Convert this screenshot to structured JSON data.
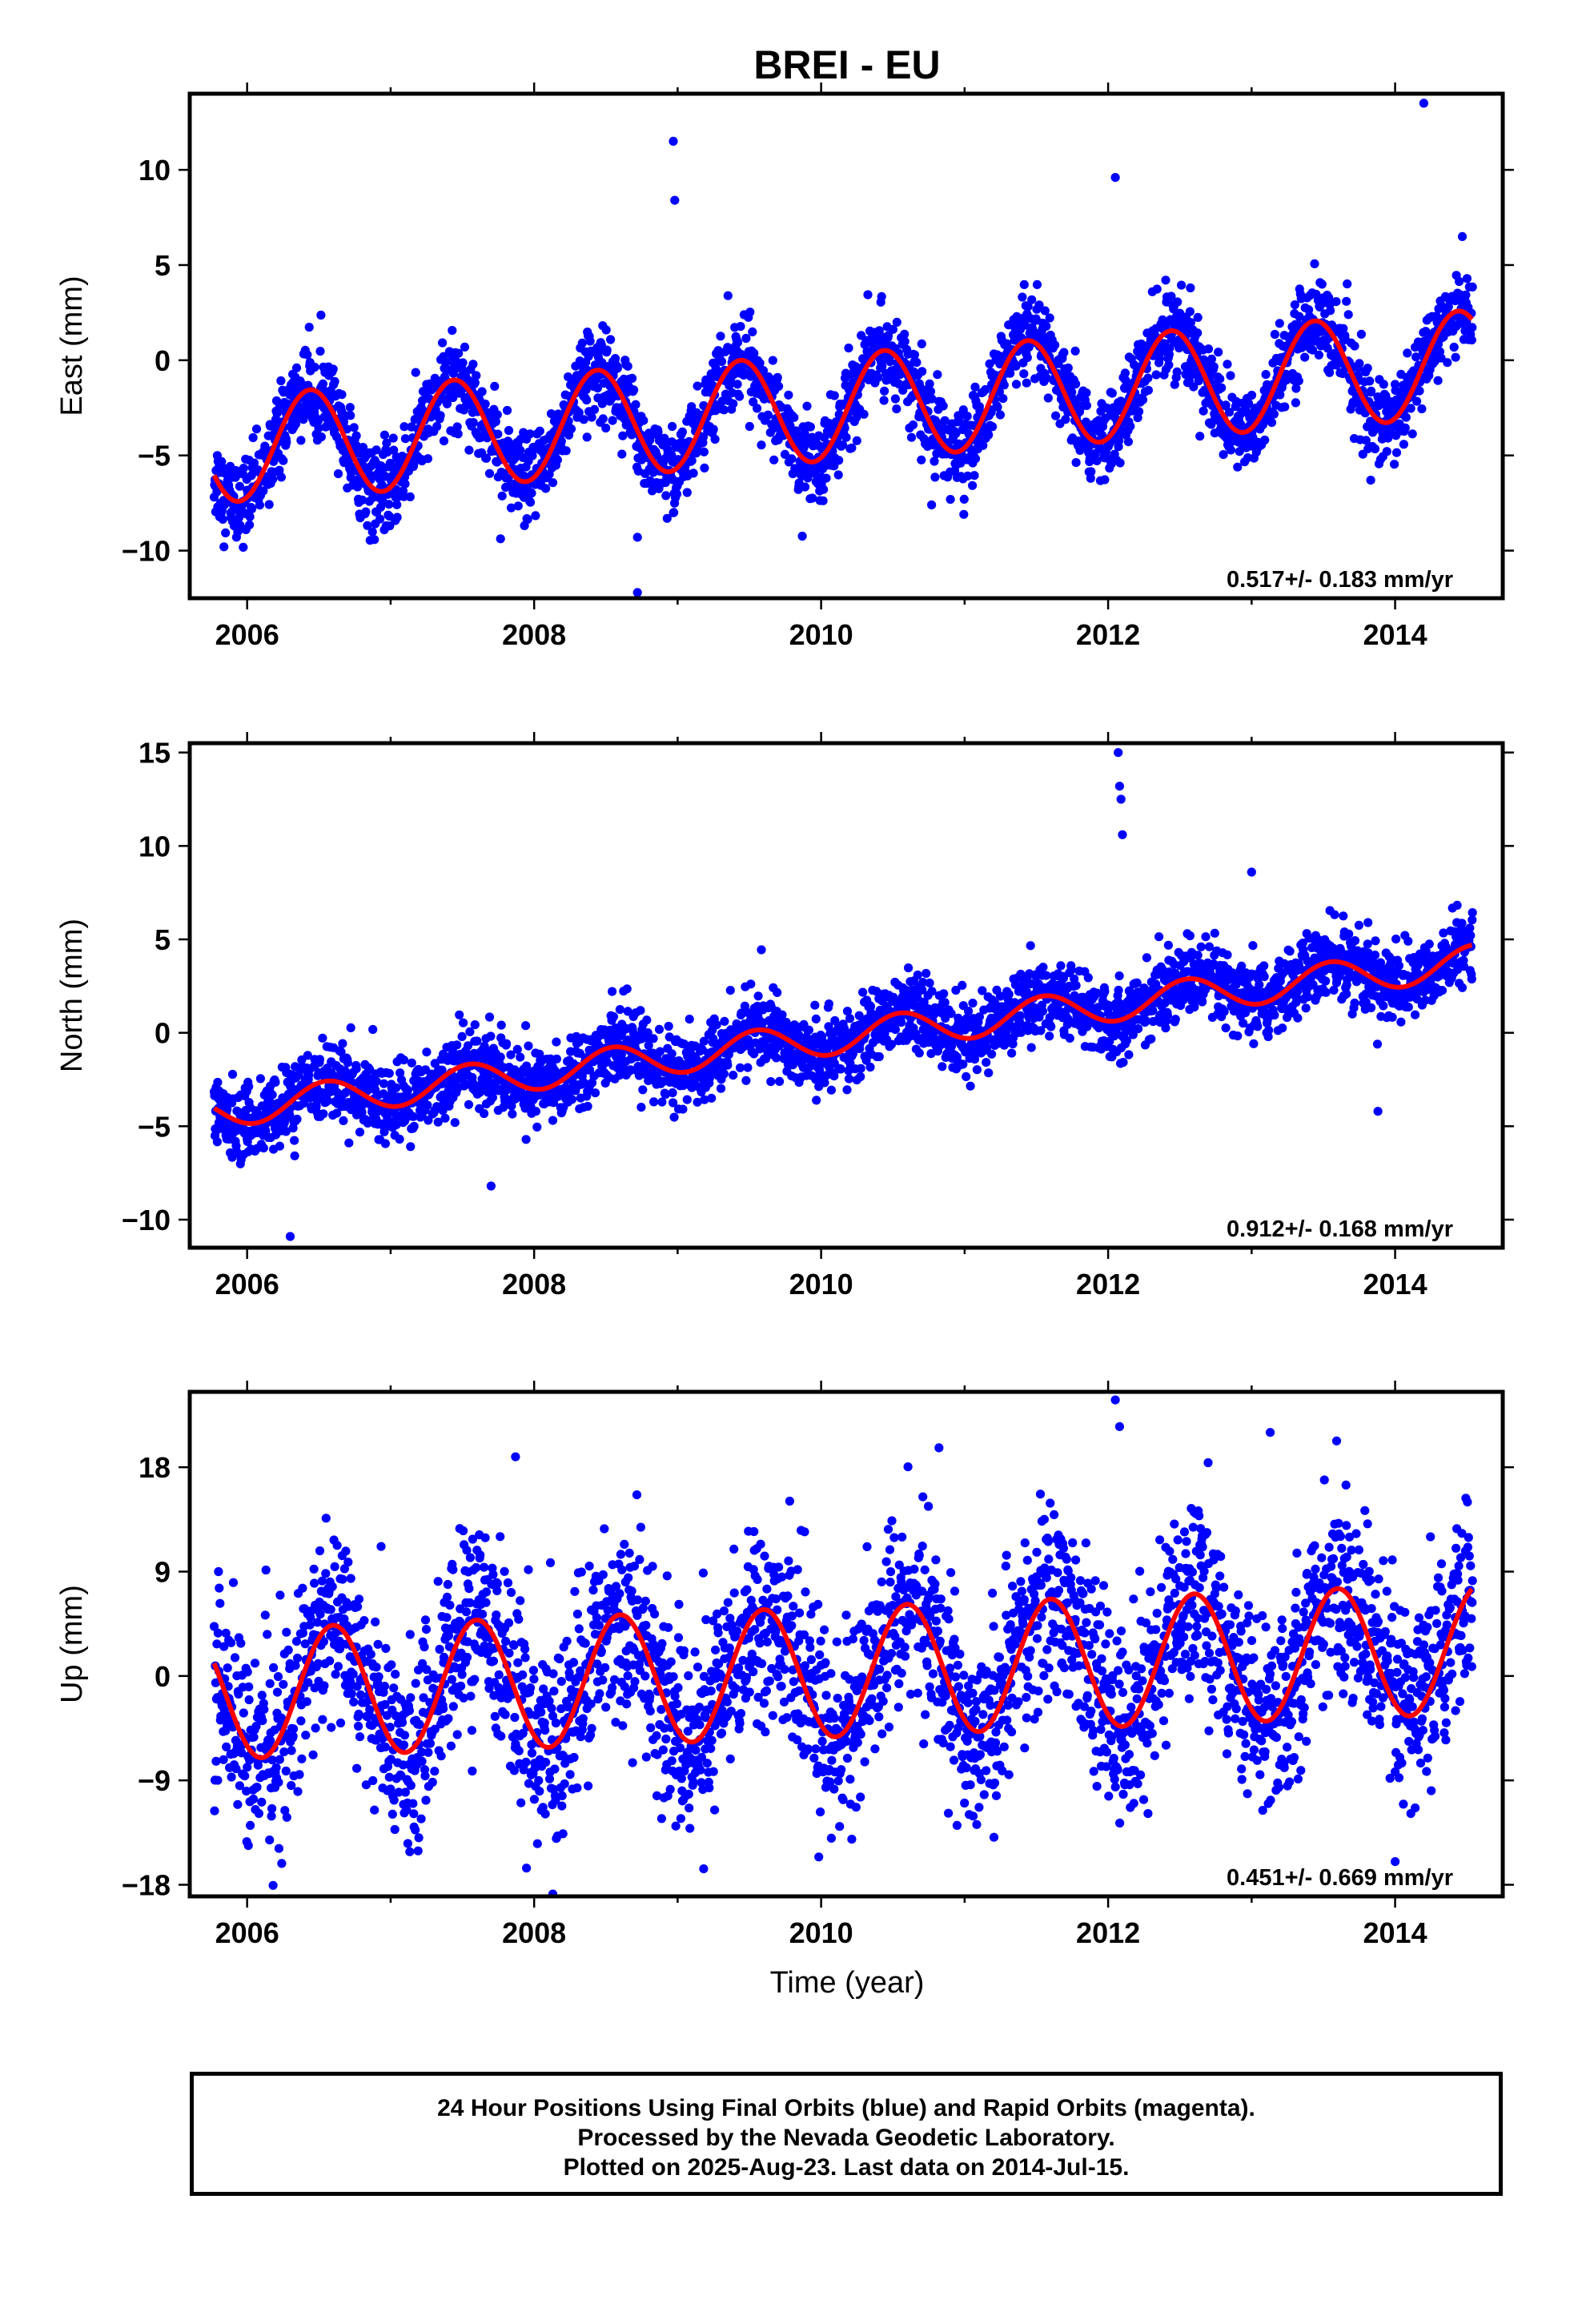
{
  "title": "BREI - EU",
  "x_axis_title": "Time (year)",
  "chart_data": [
    {
      "type": "scatter",
      "name": "east",
      "ylabel": "East (mm)",
      "xlim": [
        2005.6,
        2014.75
      ],
      "ylim": [
        -12.5,
        14
      ],
      "yticks": [
        10,
        5,
        0,
        -5,
        -10
      ],
      "ytick_labels": [
        "10",
        "5",
        "0",
        "−5",
        "−10"
      ],
      "xticks": [
        2006,
        2008,
        2010,
        2012,
        2014
      ],
      "xtick_labels": [
        "2006",
        "2008",
        "2010",
        "2012",
        "2014"
      ],
      "rate_label": "0.517+/- 0.183 mm/yr",
      "series": [
        {
          "role": "observations",
          "color": "#0000ff",
          "model": {
            "intercept": -4.7,
            "rate": 0.517,
            "start": 2005.77,
            "amplitude": 2.8,
            "peak_phase": 0.44,
            "scatter": 1.1
          },
          "outliers": [
            [
              2008.97,
              11.5
            ],
            [
              2008.98,
              8.4
            ],
            [
              2008.72,
              -12.2
            ],
            [
              2008.72,
              -9.3
            ],
            [
              2014.2,
              13.5
            ],
            [
              2012.05,
              9.6
            ],
            [
              2013.83,
              -6.3
            ],
            [
              2010.77,
              -7.6
            ]
          ]
        },
        {
          "role": "fit",
          "color": "#ff0000",
          "model": {
            "intercept": -4.7,
            "rate": 0.517,
            "start": 2005.77,
            "amplitude": 2.8,
            "peak_phase": 0.44
          }
        }
      ]
    },
    {
      "type": "scatter",
      "name": "north",
      "ylabel": "North (mm)",
      "xlim": [
        2005.6,
        2014.75
      ],
      "ylim": [
        -11.5,
        15.5
      ],
      "yticks": [
        15,
        10,
        5,
        0,
        -5,
        -10
      ],
      "ytick_labels": [
        "15",
        "10",
        "5",
        "0",
        "−5",
        "−10"
      ],
      "xticks": [
        2006,
        2008,
        2010,
        2012,
        2014
      ],
      "xtick_labels": [
        "2006",
        "2008",
        "2010",
        "2012",
        "2014"
      ],
      "rate_label": "0.912+/- 0.168 mm/yr",
      "series": [
        {
          "role": "observations",
          "color": "#0000ff",
          "model": {
            "intercept": -4.2,
            "rate": 0.912,
            "start": 2005.77,
            "amplitude": 0.9,
            "peak_phase": 0.55,
            "scatter": 1.0
          },
          "outliers": [
            [
              2012.07,
              15.0
            ],
            [
              2012.08,
              13.2
            ],
            [
              2012.09,
              12.5
            ],
            [
              2012.1,
              10.6
            ],
            [
              2006.3,
              -10.9
            ],
            [
              2013.88,
              -4.2
            ],
            [
              2007.7,
              -8.2
            ],
            [
              2013.0,
              8.6
            ]
          ]
        },
        {
          "role": "fit",
          "color": "#ff0000",
          "model": {
            "intercept": -4.2,
            "rate": 0.912,
            "start": 2005.77,
            "amplitude": 0.9,
            "peak_phase": 0.55
          }
        }
      ]
    },
    {
      "type": "scatter",
      "name": "up",
      "ylabel": "Up (mm)",
      "xlim": [
        2005.6,
        2014.75
      ],
      "ylim": [
        -19,
        24.5
      ],
      "yticks": [
        18,
        9,
        0,
        -9,
        -18
      ],
      "ytick_labels": [
        "18",
        "9",
        "0",
        "−9",
        "−18"
      ],
      "xticks": [
        2006,
        2008,
        2010,
        2012,
        2014
      ],
      "xtick_labels": [
        "2006",
        "2008",
        "2010",
        "2012",
        "2014"
      ],
      "rate_label": "0.451+/- 0.669 mm/yr",
      "series": [
        {
          "role": "observations",
          "color": "#0000ff",
          "model": {
            "intercept": -1.6,
            "rate": 0.451,
            "start": 2005.77,
            "amplitude": 5.6,
            "peak_phase": 0.6,
            "scatter": 4.2
          },
          "outliers": [
            [
              2012.05,
              23.8
            ],
            [
              2012.08,
              21.5
            ],
            [
              2007.87,
              18.9
            ],
            [
              2013.13,
              21.0
            ],
            [
              2008.13,
              -18.8
            ],
            [
              2014.0,
              -16.0
            ]
          ]
        },
        {
          "role": "fit",
          "color": "#ff0000",
          "model": {
            "intercept": -1.6,
            "rate": 0.451,
            "start": 2005.77,
            "amplitude": 5.6,
            "peak_phase": 0.6
          }
        }
      ]
    }
  ],
  "note": {
    "line1": "24 Hour Positions Using Final Orbits (blue) and Rapid Orbits (magenta).",
    "line2": "Processed by the Nevada Geodetic Laboratory.",
    "line3": "Plotted on 2025-Aug-23. Last data on 2014-Jul-15."
  }
}
